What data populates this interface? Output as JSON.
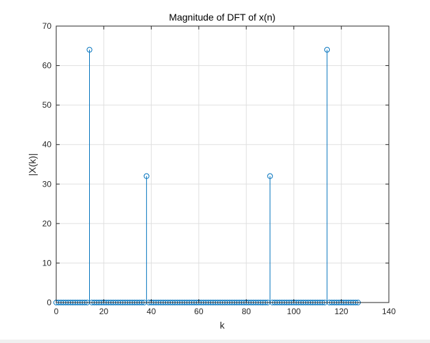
{
  "chart_data": {
    "type": "stem",
    "title": "Magnitude of DFT of x(n)",
    "xlabel": "k",
    "ylabel": "|X(k)|",
    "xlim": [
      0,
      140
    ],
    "ylim": [
      0,
      70
    ],
    "xticks": [
      "0",
      "20",
      "40",
      "60",
      "80",
      "100",
      "120",
      "140"
    ],
    "yticks": [
      "0",
      "10",
      "20",
      "30",
      "40",
      "50",
      "60",
      "70"
    ],
    "grid": true,
    "n_points": 128,
    "k_start": 0,
    "baseline_value": 0,
    "peaks": [
      {
        "k": 14,
        "value": 64
      },
      {
        "k": 38,
        "value": 32
      },
      {
        "k": 90,
        "value": 32
      },
      {
        "k": 114,
        "value": 64
      }
    ],
    "colors": {
      "series": "#0072bd",
      "grid": "#dfdfdf",
      "axis": "#262626",
      "background": "#ffffff"
    }
  }
}
